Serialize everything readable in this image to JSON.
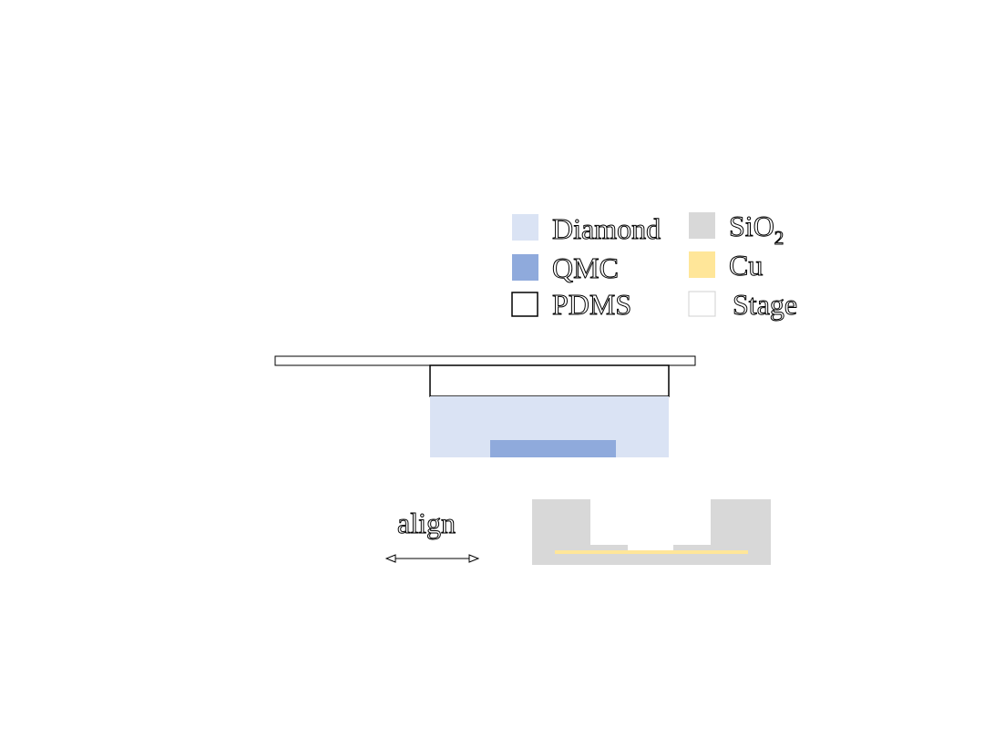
{
  "legend": {
    "items": [
      {
        "key": "diamond",
        "label": "Diamond",
        "color": "#dae3f4",
        "outlined": false
      },
      {
        "key": "sio2",
        "label": "SiO",
        "subscript": "2",
        "color": "#d8d8d8",
        "outlined": false
      },
      {
        "key": "qmc",
        "label": "QMC",
        "color": "#8faadc",
        "outlined": false
      },
      {
        "key": "cu",
        "label": "Cu",
        "color": "#ffe699",
        "outlined": false
      },
      {
        "key": "pdms",
        "label": "PDMS",
        "color": "#ffffff",
        "outlined": true
      },
      {
        "key": "stage",
        "label": "Stage",
        "color": "#ffffff",
        "outlined": false
      }
    ]
  },
  "labels": {
    "align": "align"
  },
  "colors": {
    "diamond": "#dae3f4",
    "qmc": "#8faadc",
    "sio2": "#d8d8d8",
    "cu": "#ffe699",
    "outline": "#000000",
    "stage_outline": "#bfbfbf"
  }
}
